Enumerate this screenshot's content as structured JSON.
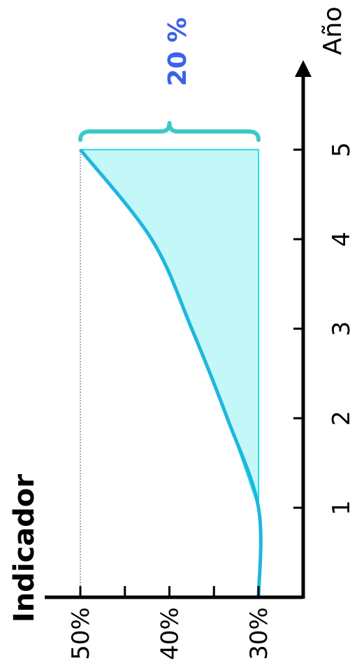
{
  "chart_data": {
    "type": "area",
    "ylabel": "Indicador",
    "xlabel": "Año",
    "x": [
      0,
      1,
      2,
      3,
      4,
      5
    ],
    "y": [
      30,
      30,
      33.5,
      37.5,
      42,
      50
    ],
    "baseline": 30,
    "target": 50,
    "xticks": [
      "1",
      "2",
      "3",
      "4",
      "5"
    ],
    "xtick_values": [
      1,
      2,
      3,
      4,
      5
    ],
    "yticks": [
      "30%",
      "40%",
      "50%"
    ],
    "ytick_values": [
      30,
      40,
      50
    ],
    "ylim": [
      30,
      50
    ],
    "xlim": [
      0,
      5
    ],
    "annotation": {
      "text": "20 %",
      "from": 30,
      "to": 50,
      "at_x": 5
    },
    "colors": {
      "line": "#1fb7dc",
      "fill": "#c4f7f7",
      "fill_edge": "#22e0e6",
      "brace": "#3cc8c8",
      "annotation": "#3b63e8"
    }
  }
}
